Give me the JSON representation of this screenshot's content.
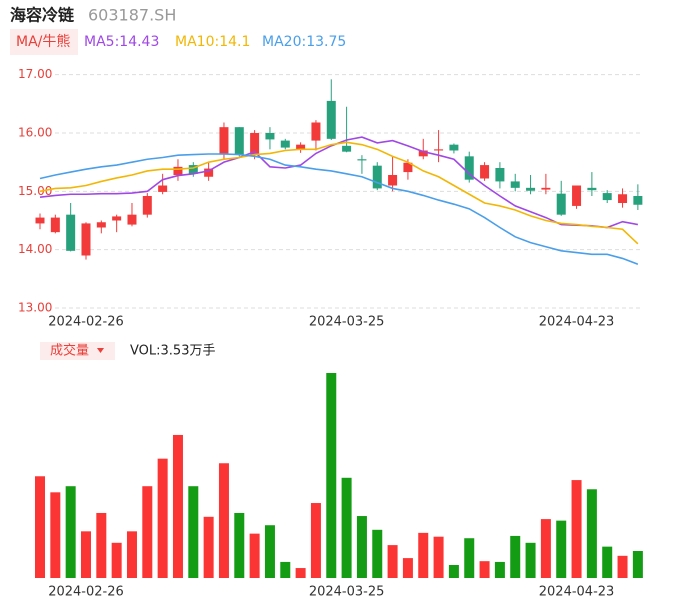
{
  "header": {
    "name": "海容冷链",
    "code": "603187.SH"
  },
  "chart_data": [
    {
      "type": "candlestick",
      "legend_label": "MA/牛熊",
      "categories": [
        null,
        null,
        null,
        "2024-02-26",
        null,
        null,
        null,
        null,
        null,
        null,
        null,
        null,
        null,
        null,
        null,
        null,
        null,
        null,
        null,
        null,
        "2024-03-25",
        null,
        null,
        null,
        null,
        null,
        null,
        null,
        null,
        null,
        null,
        null,
        null,
        null,
        null,
        "2024-04-23",
        null,
        null,
        null,
        null
      ],
      "open": [
        14.45,
        14.3,
        14.6,
        13.9,
        14.38,
        14.5,
        14.43,
        14.6,
        14.99,
        15.28,
        15.45,
        15.25,
        15.63,
        16.1,
        15.63,
        16.0,
        15.87,
        15.72,
        15.87,
        16.55,
        15.78,
        15.55,
        15.44,
        15.1,
        15.33,
        15.6,
        15.7,
        15.8,
        15.6,
        15.22,
        15.4,
        15.17,
        15.06,
        15.03,
        14.96,
        14.75,
        15.06,
        14.97,
        14.8,
        14.92
      ],
      "high": [
        14.62,
        14.6,
        14.8,
        14.47,
        14.5,
        14.6,
        14.8,
        14.97,
        15.3,
        15.55,
        15.5,
        15.5,
        16.18,
        16.1,
        16.05,
        16.1,
        15.9,
        15.84,
        16.22,
        16.92,
        16.45,
        15.62,
        15.5,
        15.6,
        15.55,
        15.9,
        16.05,
        15.82,
        15.68,
        15.5,
        15.5,
        15.3,
        15.28,
        15.3,
        15.18,
        15.1,
        15.33,
        15.02,
        15.05,
        15.12
      ],
      "low": [
        14.35,
        14.28,
        13.97,
        13.83,
        14.28,
        14.3,
        14.4,
        14.55,
        14.95,
        15.18,
        15.25,
        15.18,
        15.55,
        15.6,
        15.55,
        15.72,
        15.72,
        15.66,
        15.7,
        15.88,
        15.67,
        15.3,
        15.02,
        15.0,
        15.2,
        15.55,
        15.5,
        15.65,
        15.15,
        15.18,
        15.05,
        15.0,
        14.95,
        14.95,
        14.58,
        14.7,
        14.92,
        14.8,
        14.72,
        14.68
      ],
      "close": [
        14.55,
        14.55,
        13.98,
        14.45,
        14.47,
        14.57,
        14.6,
        14.92,
        15.1,
        15.42,
        15.3,
        15.39,
        16.1,
        15.63,
        16.0,
        15.89,
        15.75,
        15.8,
        16.18,
        15.9,
        15.68,
        15.53,
        15.05,
        15.28,
        15.49,
        15.7,
        15.72,
        15.7,
        15.2,
        15.45,
        15.17,
        15.06,
        15.01,
        15.06,
        14.6,
        15.1,
        15.02,
        14.85,
        14.95,
        14.77
      ],
      "up_color": "#f23a3a",
      "down_color": "#27a07c",
      "series": [
        {
          "name": "MA5:14.43",
          "color": "#a048e6",
          "values": [
            14.9,
            14.93,
            14.95,
            14.95,
            14.96,
            14.96,
            14.97,
            15.0,
            15.2,
            15.27,
            15.3,
            15.35,
            15.5,
            15.58,
            15.68,
            15.42,
            15.4,
            15.45,
            15.65,
            15.78,
            15.88,
            15.93,
            15.83,
            15.87,
            15.78,
            15.68,
            15.62,
            15.55,
            15.3,
            15.1,
            14.92,
            14.75,
            14.65,
            14.55,
            14.43,
            14.42,
            14.41,
            14.38,
            14.48,
            14.43
          ]
        },
        {
          "name": "MA10:14.1",
          "color": "#f2b705",
          "values": [
            15.0,
            15.05,
            15.06,
            15.1,
            15.17,
            15.23,
            15.28,
            15.35,
            15.38,
            15.38,
            15.4,
            15.5,
            15.55,
            15.58,
            15.63,
            15.65,
            15.7,
            15.72,
            15.72,
            15.8,
            15.84,
            15.8,
            15.72,
            15.6,
            15.5,
            15.35,
            15.25,
            15.1,
            14.95,
            14.8,
            14.75,
            14.68,
            14.58,
            14.5,
            14.45,
            14.43,
            14.4,
            14.38,
            14.35,
            14.1
          ]
        },
        {
          "name": "MA20:13.75",
          "color": "#4a9fea",
          "values": [
            15.22,
            15.28,
            15.33,
            15.38,
            15.42,
            15.45,
            15.5,
            15.55,
            15.58,
            15.62,
            15.63,
            15.64,
            15.64,
            15.63,
            15.6,
            15.55,
            15.45,
            15.42,
            15.38,
            15.35,
            15.3,
            15.25,
            15.15,
            15.05,
            15.0,
            14.93,
            14.85,
            14.78,
            14.7,
            14.55,
            14.38,
            14.22,
            14.12,
            14.05,
            13.98,
            13.95,
            13.92,
            13.92,
            13.85,
            13.75
          ]
        }
      ],
      "ylim": [
        13,
        17.2
      ],
      "yticks": [
        {
          "value": 13,
          "label": "13.00"
        },
        {
          "value": 14,
          "label": "14.00"
        },
        {
          "value": 15,
          "label": "15.00"
        },
        {
          "value": 16,
          "label": "16.00"
        },
        {
          "value": 17,
          "label": "17.00"
        }
      ],
      "grid": true
    },
    {
      "type": "bar",
      "title": "成交量",
      "subtitle": "VOL:3.53万手",
      "categories": [
        null,
        null,
        null,
        "2024-02-26",
        null,
        null,
        null,
        null,
        null,
        null,
        null,
        null,
        null,
        null,
        null,
        null,
        null,
        null,
        null,
        null,
        "2024-03-25",
        null,
        null,
        null,
        null,
        null,
        null,
        null,
        null,
        null,
        null,
        null,
        null,
        null,
        null,
        "2024-04-23",
        null,
        null,
        null,
        null
      ],
      "values": [
        13.3,
        11.2,
        12.0,
        6.1,
        8.5,
        4.6,
        6.1,
        12.0,
        15.6,
        18.7,
        12.0,
        8.0,
        15.0,
        8.5,
        5.8,
        6.9,
        2.1,
        1.3,
        9.8,
        26.8,
        13.1,
        8.1,
        6.3,
        4.3,
        2.6,
        5.9,
        5.4,
        1.7,
        5.2,
        2.2,
        2.1,
        5.5,
        4.6,
        7.7,
        7.5,
        12.8,
        11.6,
        4.1,
        2.9,
        3.53
      ],
      "up_color": "#fb3434",
      "down_color": "#159c15"
    }
  ]
}
